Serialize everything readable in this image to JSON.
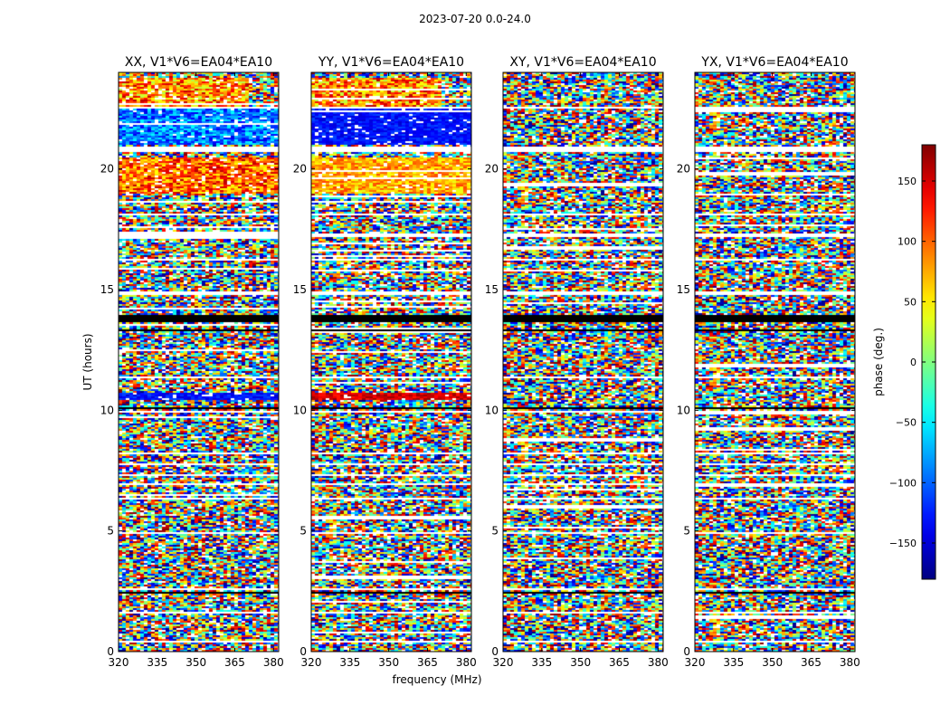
{
  "chart_data": {
    "type": "heatmap",
    "suptitle": "2023-07-20 0.0-24.0",
    "xlabel": "frequency (MHz)",
    "ylabel": "UT (hours)",
    "xlim": [
      320,
      382
    ],
    "ylim": [
      0,
      24
    ],
    "xticks": [
      320,
      335,
      350,
      365,
      380
    ],
    "yticks": [
      0,
      5,
      10,
      15,
      20
    ],
    "panels": [
      {
        "title": "XX, V1*V6=EA04*EA10",
        "polarization": "XX"
      },
      {
        "title": "YY, V1*V6=EA04*EA10",
        "polarization": "YY"
      },
      {
        "title": "XY, V1*V6=EA04*EA10",
        "polarization": "XY"
      },
      {
        "title": "YX, V1*V6=EA04*EA10",
        "polarization": "YX"
      }
    ],
    "colorbar": {
      "label": "phase (deg.)",
      "colormap": "jet",
      "range": [
        -180,
        180
      ],
      "ticks": [
        -150,
        -100,
        -50,
        0,
        50,
        100,
        150
      ],
      "tick_labels": [
        "−150",
        "−100",
        "−50",
        "0",
        "50",
        "100",
        "150"
      ]
    },
    "flagged_hours": [
      [
        0.4,
        0.45
      ],
      [
        1.6,
        1.65
      ],
      [
        2.55,
        2.65
      ],
      [
        3.5,
        3.55
      ],
      [
        4.9,
        4.95
      ],
      [
        6.3,
        6.4
      ],
      [
        6.9,
        6.95
      ],
      [
        7.3,
        7.35
      ],
      [
        7.7,
        7.8
      ],
      [
        8.2,
        8.25
      ],
      [
        9.9,
        10.0
      ],
      [
        11.3,
        11.4
      ],
      [
        13.1,
        13.15
      ],
      [
        14.8,
        14.9
      ],
      [
        16.2,
        16.3
      ],
      [
        17.2,
        17.3
      ],
      [
        18.1,
        18.15
      ],
      [
        19.7,
        19.75
      ],
      [
        20.7,
        20.9
      ],
      [
        21.8,
        21.85
      ],
      [
        22.5,
        22.6
      ]
    ],
    "black_bands_hours": [
      [
        13.65,
        13.95
      ],
      [
        13.3,
        13.35
      ],
      [
        10.05,
        10.1
      ],
      [
        6.05,
        6.1
      ],
      [
        2.4,
        2.45
      ]
    ],
    "coherent_bands": [
      {
        "hours": [
          22.6,
          23.8
        ],
        "XX": "mixed warm",
        "YY": "mixed warm"
      },
      {
        "hours": [
          21.0,
          22.5
        ],
        "XX": "blue/cyan",
        "YY": "blue"
      },
      {
        "hours": [
          19.0,
          20.5
        ],
        "XX": "red/yellow",
        "YY": "yellow/orange"
      },
      {
        "hours": [
          10.4,
          10.7
        ],
        "XX": "blue",
        "YY": "red"
      }
    ]
  }
}
